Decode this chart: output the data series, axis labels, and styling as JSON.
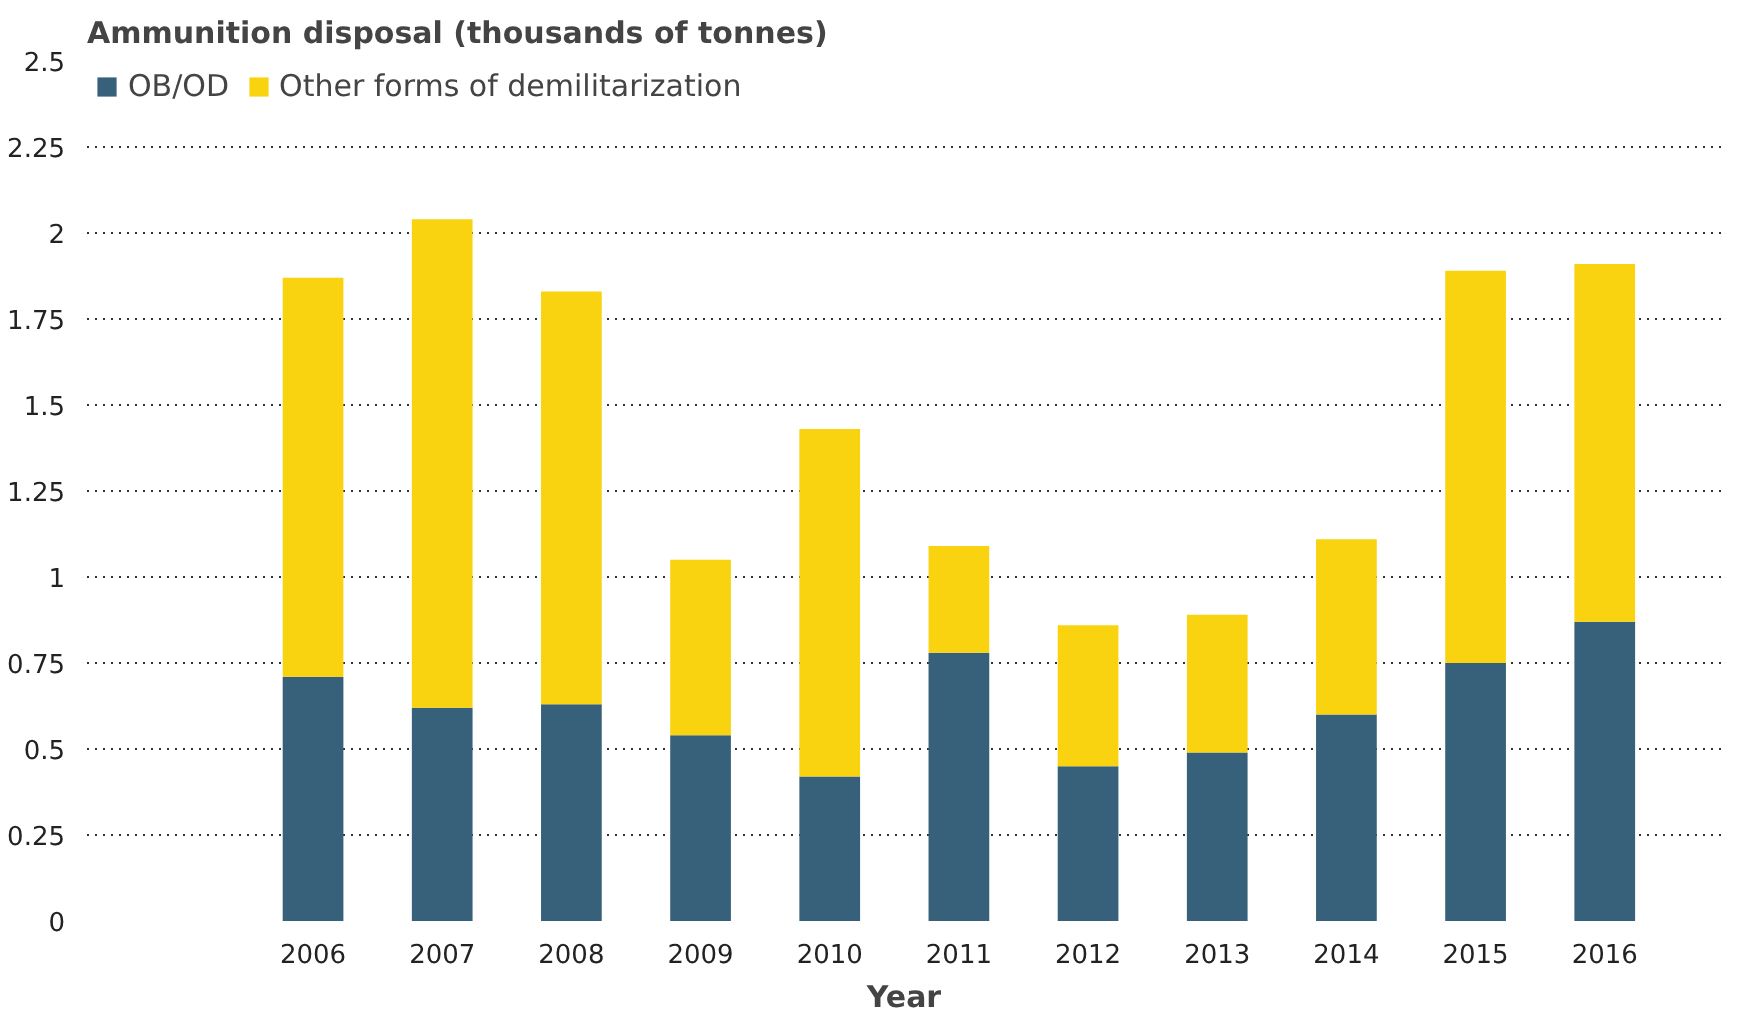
{
  "chart_data": {
    "type": "bar",
    "stacked": true,
    "ylabel": "Ammunition disposal (thousands of tonnes)",
    "xlabel": "Year",
    "categories": [
      "2006",
      "2007",
      "2008",
      "2009",
      "2010",
      "2011",
      "2012",
      "2013",
      "2014",
      "2015",
      "2016"
    ],
    "series": [
      {
        "name": "OB/OD",
        "color": "#37607a",
        "values": [
          0.71,
          0.62,
          0.63,
          0.54,
          0.42,
          0.78,
          0.45,
          0.49,
          0.6,
          0.75,
          0.87
        ]
      },
      {
        "name": "Other forms of demilitarization",
        "color": "#f9d30f",
        "values": [
          1.16,
          1.42,
          1.2,
          0.51,
          1.01,
          0.31,
          0.41,
          0.4,
          0.51,
          1.14,
          1.04
        ]
      }
    ],
    "ylim": [
      0,
      2.5
    ],
    "yticks": [
      0,
      {
        "value": 0.25,
        "label": "0.25"
      },
      {
        "value": 0.5,
        "label": "0.5"
      },
      {
        "value": 0.75,
        "label": "0.75"
      },
      1,
      {
        "value": 1.25,
        "label": "1.25"
      },
      {
        "value": 1.5,
        "label": "1.5"
      },
      {
        "value": 1.75,
        "label": "1.75"
      },
      2,
      {
        "value": 2.25,
        "label": "2.25"
      },
      {
        "value": 2.5,
        "label": "2.5"
      }
    ],
    "grid": "y",
    "legend": "top left"
  }
}
